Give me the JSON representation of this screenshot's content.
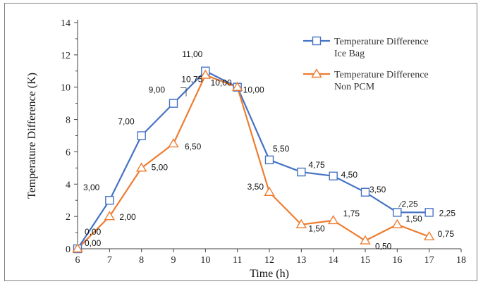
{
  "chart_data": {
    "type": "line",
    "title": "",
    "xlabel": "Time (h)",
    "ylabel": "Temperature Difference (K)",
    "xlim": [
      6,
      18
    ],
    "ylim": [
      0,
      14
    ],
    "x_ticks": [
      "6",
      "7",
      "8",
      "9",
      "10",
      "11",
      "12",
      "13",
      "14",
      "15",
      "16",
      "17",
      "18"
    ],
    "y_ticks": [
      "0",
      "2",
      "4",
      "6",
      "8",
      "10",
      "12",
      "14"
    ],
    "grid": false,
    "legend_position": "top-right",
    "series": [
      {
        "name": "Temperature Difference Ice Bag",
        "legend_lines": [
          "Temperature Difference",
          "Ice Bag"
        ],
        "color": "#4472c4",
        "marker": "square",
        "x": [
          6,
          7,
          8,
          9,
          10,
          11,
          12,
          13,
          14,
          15,
          16,
          17
        ],
        "y": [
          0,
          3,
          7,
          9,
          11,
          10,
          5.5,
          4.75,
          4.5,
          3.5,
          2.25,
          2.25
        ],
        "labels": [
          "0,00",
          "3,00",
          "7,00",
          "9,00",
          "11,00",
          "10,00",
          "5,50",
          "4,75",
          "4,50",
          "3,50",
          "2,25",
          "2,25"
        ]
      },
      {
        "name": "Temperature Difference Non PCM",
        "legend_lines": [
          "Temperature Difference",
          "Non PCM"
        ],
        "color": "#ed7d31",
        "marker": "triangle",
        "x": [
          6,
          7,
          8,
          9,
          10,
          11,
          12,
          13,
          14,
          15,
          16,
          17
        ],
        "y": [
          0,
          2,
          5,
          6.5,
          10.75,
          10,
          3.5,
          1.5,
          1.75,
          0.5,
          1.5,
          0.75
        ],
        "labels": [
          "0,00",
          "2,00",
          "5,00",
          "6,50",
          "10,75",
          "10,00",
          "3,50",
          "1,50",
          "1,75",
          "0,50",
          "1,50",
          "0,75"
        ]
      }
    ]
  }
}
